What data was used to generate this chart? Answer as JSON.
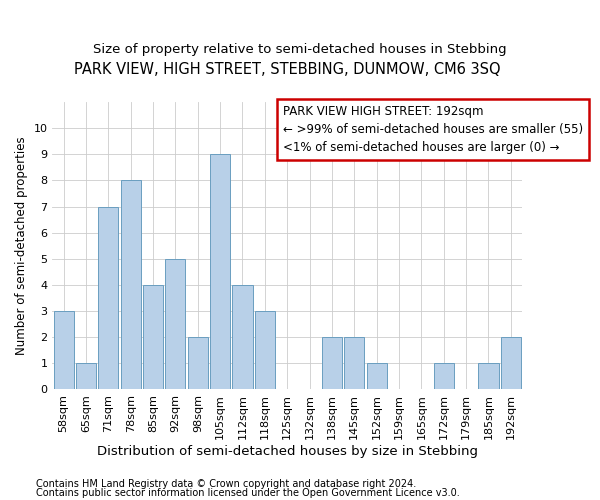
{
  "title": "PARK VIEW, HIGH STREET, STEBBING, DUNMOW, CM6 3SQ",
  "subtitle": "Size of property relative to semi-detached houses in Stebbing",
  "xlabel": "Distribution of semi-detached houses by size in Stebbing",
  "ylabel": "Number of semi-detached properties",
  "categories": [
    "58sqm",
    "65sqm",
    "71sqm",
    "78sqm",
    "85sqm",
    "92sqm",
    "98sqm",
    "105sqm",
    "112sqm",
    "118sqm",
    "125sqm",
    "132sqm",
    "138sqm",
    "145sqm",
    "152sqm",
    "159sqm",
    "165sqm",
    "172sqm",
    "179sqm",
    "185sqm",
    "192sqm"
  ],
  "values": [
    3,
    1,
    7,
    8,
    4,
    5,
    2,
    9,
    4,
    3,
    0,
    0,
    2,
    2,
    1,
    0,
    0,
    1,
    0,
    1,
    2
  ],
  "bar_color": "#b8d0e8",
  "bar_edge_color": "#6a9ec0",
  "ylim": [
    0,
    11
  ],
  "yticks": [
    0,
    1,
    2,
    3,
    4,
    5,
    6,
    7,
    8,
    9,
    10,
    11
  ],
  "annotation_title": "PARK VIEW HIGH STREET: 192sqm",
  "annotation_line1": "← >99% of semi-detached houses are smaller (55)",
  "annotation_line2": "<1% of semi-detached houses are larger (0) →",
  "annotation_box_color": "#ffffff",
  "annotation_box_edgecolor": "#cc0000",
  "footer_line1": "Contains HM Land Registry data © Crown copyright and database right 2024.",
  "footer_line2": "Contains public sector information licensed under the Open Government Licence v3.0.",
  "grid_color": "#cccccc",
  "background_color": "#ffffff",
  "title_fontsize": 10.5,
  "subtitle_fontsize": 9.5,
  "xlabel_fontsize": 9.5,
  "ylabel_fontsize": 8.5,
  "tick_fontsize": 8,
  "annotation_fontsize": 8.5,
  "footer_fontsize": 7
}
